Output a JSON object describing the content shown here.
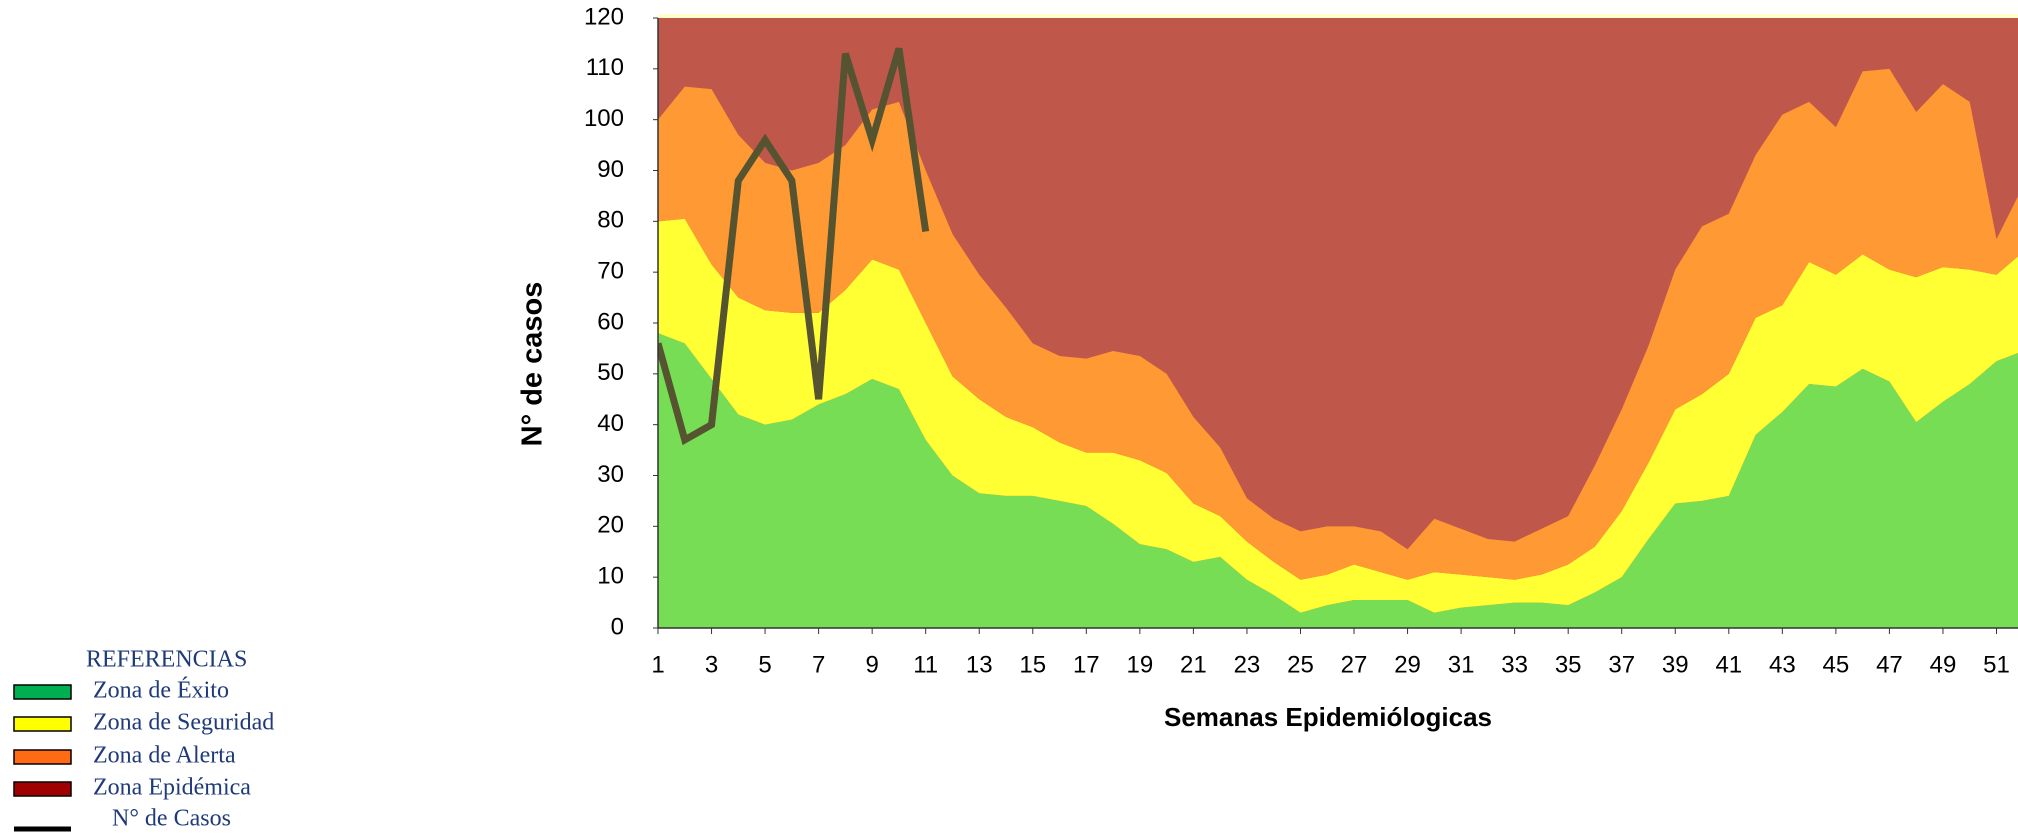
{
  "chart_data": {
    "type": "stacked_area",
    "y_label": "N° de casos",
    "x_label": "Semanas Epidemiólogicas",
    "legend_title": "REFERENCIAS",
    "x": [
      1,
      2,
      3,
      4,
      5,
      6,
      7,
      8,
      9,
      10,
      11,
      12,
      13,
      14,
      15,
      16,
      17,
      18,
      19,
      20,
      21,
      22,
      23,
      24,
      25,
      26,
      27,
      28,
      29,
      30,
      31,
      32,
      33,
      34,
      35,
      36,
      37,
      38,
      39,
      40,
      41,
      42,
      43,
      44,
      45,
      46,
      47,
      48,
      49,
      50,
      51,
      52
    ],
    "xlim": [
      1,
      52
    ],
    "xticks": [
      1,
      3,
      5,
      7,
      9,
      11,
      13,
      15,
      17,
      19,
      21,
      23,
      25,
      27,
      29,
      31,
      33,
      35,
      37,
      39,
      41,
      43,
      45,
      47,
      49,
      51
    ],
    "ylim": [
      0,
      120
    ],
    "yticks": [
      0,
      10,
      20,
      30,
      40,
      50,
      60,
      70,
      80,
      90,
      100,
      110,
      120
    ],
    "series": [
      {
        "name": "Zona de Éxito",
        "color": "#77dd55",
        "legend_color": "#00b050",
        "values": [
          58,
          56,
          49,
          42,
          40,
          41,
          44,
          46,
          49,
          47,
          37,
          30,
          26.5,
          26,
          26,
          25,
          24,
          20.5,
          16.5,
          15.5,
          13,
          14,
          9.5,
          6.5,
          3,
          4.5,
          5.5,
          5.5,
          5.5,
          3,
          4,
          4.5,
          5,
          5,
          4.5,
          7,
          10,
          17.5,
          24.5,
          25,
          26,
          38,
          42.5,
          48,
          47.5,
          51,
          48.5,
          40.5,
          44.5,
          48,
          52.5,
          54.5
        ]
      },
      {
        "name": "Zona de Seguridad",
        "color": "#ffff33",
        "legend_color": "#ffff00",
        "values": [
          22,
          24.5,
          22.5,
          23,
          22.5,
          21,
          18,
          20.5,
          23.5,
          23.5,
          23,
          19.5,
          18.5,
          15.5,
          13.5,
          11.5,
          10.5,
          14,
          16.5,
          15,
          11.5,
          8,
          7.5,
          6.5,
          6.5,
          6,
          7,
          5.5,
          4,
          8,
          6.5,
          5.5,
          4.5,
          5.5,
          8,
          9,
          13,
          15,
          18.5,
          21,
          24,
          23,
          21,
          24,
          22,
          22.5,
          22,
          28.5,
          26.5,
          22.5,
          17,
          19.5
        ]
      },
      {
        "name": "Zona de Alerta",
        "color": "#ff9933",
        "legend_color": "#ff6a13",
        "values": [
          20,
          26,
          34.5,
          32,
          29,
          28,
          29.5,
          28.5,
          29.5,
          33,
          30,
          28,
          24.5,
          21.5,
          16.5,
          17,
          18.5,
          20,
          20.5,
          19.5,
          17,
          13.5,
          8.5,
          8.5,
          9.5,
          9.5,
          7.5,
          8,
          6,
          10.5,
          9,
          7.5,
          7.5,
          9,
          9.5,
          16,
          20,
          23,
          27.5,
          33,
          31.5,
          32,
          37.5,
          31.5,
          29,
          36,
          39.5,
          32.5,
          36,
          33,
          7,
          13
        ]
      }
    ],
    "background_zone": {
      "name": "Zona Epidémica",
      "color": "#c0574b",
      "legend_color": "#a00000"
    },
    "line_series": {
      "name": "N° de Casos",
      "color": "#555330",
      "legend_color": "#000000",
      "values": [
        56,
        37,
        40,
        88,
        96,
        88,
        45,
        113,
        96,
        114,
        78
      ]
    }
  }
}
